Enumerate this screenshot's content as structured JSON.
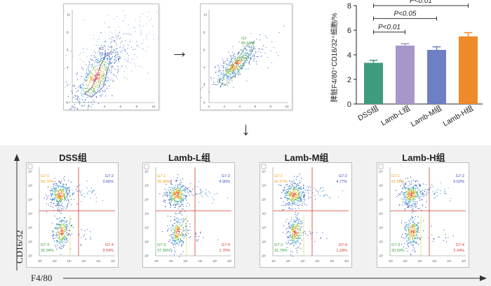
{
  "scatter_top": {
    "left_plot": {
      "gate_name": "G1",
      "gate_value": "50.44%",
      "y_ticks": [
        "0",
        "2",
        "4",
        "6",
        "8",
        "10"
      ],
      "x_ticks": [
        "0",
        "2",
        "4",
        "6",
        "8",
        "10"
      ]
    },
    "right_plot": {
      "gate_name": "G2",
      "gate_value": "89.69%",
      "y_ticks": [
        "0",
        "2",
        "4",
        "6",
        "8",
        "10"
      ],
      "x_ticks": [
        "0",
        "2",
        "4",
        "6",
        "8",
        "10"
      ]
    }
  },
  "arrows": {
    "right": "→",
    "down": "↓"
  },
  "chart_data": {
    "type": "bar",
    "categories": [
      "DSS组",
      "Lamb-L组",
      "Lamb-M组",
      "Lamb-H组"
    ],
    "values": [
      3.35,
      4.75,
      4.4,
      5.5
    ],
    "errors": [
      0.2,
      0.15,
      0.25,
      0.3
    ],
    "colors": [
      "#3f9b80",
      "#a796c9",
      "#6f7fc4",
      "#ef8a2a"
    ],
    "ylabel": "脾脏F4/80⁺CD16/32⁺细胞/%",
    "ylim": [
      0,
      8
    ],
    "yticks": [
      "0",
      "2",
      "4",
      "6",
      "8"
    ],
    "significance": [
      {
        "label": "P<0.01",
        "from": 0,
        "to": 3
      },
      {
        "label": "P<0.05",
        "from": 0,
        "to": 2
      },
      {
        "label": "P<0.01",
        "from": 0,
        "to": 1
      }
    ]
  },
  "bottom": {
    "y_axis_label": "CD16/32",
    "x_axis_label": "F4/80",
    "quad_labels": [
      "G7-1",
      "G7-2",
      "G7-3",
      "G7-4"
    ],
    "groups": [
      {
        "title": "DSS组",
        "q1": "59.76%",
        "q2": "3.66%",
        "q3": "35.04%",
        "q4": "1.54%"
      },
      {
        "title": "Lamb-L组",
        "q1": "55.98%",
        "q2": "4.90%",
        "q3": "37.36%",
        "q4": "1.76%"
      },
      {
        "title": "Lamb-M组",
        "q1": "62.27%",
        "q2": "4.77%",
        "q3": "31.78%",
        "q4": "1.18%"
      },
      {
        "title": "Lamb-H组",
        "q1": "61.56%",
        "q2": "5.52%",
        "q3": "30.59%",
        "q4": "2.34%"
      }
    ],
    "y_ticks": [
      "10⁷",
      "10⁶",
      "10⁵",
      "10⁴",
      "10³",
      "10²",
      "10¹"
    ],
    "x_ticks": [
      "10¹",
      "10²",
      "10³",
      "10⁴",
      "10⁵",
      "10⁶"
    ]
  }
}
